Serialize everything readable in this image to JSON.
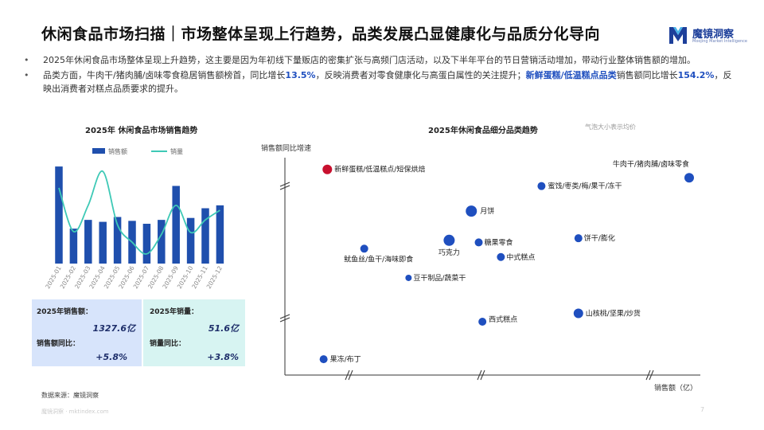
{
  "title": "休闲食品市场扫描｜市场整体呈现上行趋势，品类发展凸显健康化与品质分化导向",
  "logo": {
    "cn": "魔镜洞察",
    "en": "Moojing Market Intelligence"
  },
  "bullets": [
    {
      "text": "2025年休闲食品市场整体呈现上升趋势，这主要是因为年初线下量贩店的密集扩张与高频门店活动，以及下半年平台的节日营销活动增加，带动行业整体销售额的增加。"
    },
    {
      "p1": "品类方面，牛肉干/猪肉脯/卤味零食稳居销售额榜首，同比增长",
      "h1": "13.5%",
      "p2": "，反映消费者对零食健康化与高蛋白属性的关注提升；",
      "h2": "新鲜蛋糕/低温糕点品类",
      "p3": "销售额同比增长",
      "h3": "154.2%",
      "p4": "，反映出消费者对糕点品质要求的提升。"
    }
  ],
  "kpi": {
    "sales_label": "2025年销售额：",
    "sales_value": "1327.6亿",
    "sales_yoy_label": "销售额同比：",
    "sales_yoy_value": "+5.8%",
    "volume_label": "2025年销量：",
    "volume_value": "51.6亿",
    "volume_yoy_label": "销量同比：",
    "volume_yoy_value": "+3.8%"
  },
  "source": "数据来源：魔镜洞察",
  "footer": "魔镜洞察 · mktindex.com",
  "page_number": "7",
  "bubble_note": "气泡大小表示均价",
  "colors": {
    "bar": "#1f4fad",
    "line": "#3ec9b6",
    "bubble": "#1f4fbf",
    "highlight": "#c8102e",
    "kpi_left": "#d7e4fb",
    "kpi_right": "#d7f4f2"
  },
  "chart_data": [
    {
      "type": "bar",
      "title": "2025年 休闲食品市场销售趋势",
      "categories": [
        "2025-01",
        "2025-02",
        "2025-03",
        "2025-04",
        "2025-05",
        "2025-06",
        "2025-07",
        "2025-08",
        "2025-09",
        "2025-10",
        "2025-11",
        "2025-12"
      ],
      "series": [
        {
          "name": "销售额",
          "type": "bar",
          "values": [
            100,
            36,
            45,
            43,
            48,
            44,
            41,
            45,
            80,
            47,
            57,
            60
          ]
        },
        {
          "name": "销量",
          "type": "line",
          "values": [
            78,
            33,
            60,
            95,
            40,
            22,
            10,
            30,
            60,
            32,
            45,
            55
          ]
        }
      ],
      "ylim": [
        0,
        105
      ],
      "legend": "top",
      "grid": false
    },
    {
      "type": "scatter",
      "title": "2025年休闲食品细分品类趋势",
      "xlabel": "销售额（亿）",
      "ylabel": "销售额同比增速",
      "axis_breaks": true,
      "points": [
        {
          "label": "新鲜蛋糕/低温糕点/短保烘焙",
          "x": 2,
          "y": 94,
          "size": 6,
          "highlight": true
        },
        {
          "label": "牛肉干/猪肉脯/卤味零食",
          "x": 100,
          "y": 90,
          "size": 6
        },
        {
          "label": "蜜饯/枣类/梅/果干/冻干",
          "x": 60,
          "y": 86,
          "size": 5
        },
        {
          "label": "月饼",
          "x": 41,
          "y": 74,
          "size": 7
        },
        {
          "label": "巧克力",
          "x": 35,
          "y": 60,
          "size": 7
        },
        {
          "label": "糖果零食",
          "x": 43,
          "y": 59,
          "size": 5
        },
        {
          "label": "饼干/膨化",
          "x": 70,
          "y": 61,
          "size": 5
        },
        {
          "label": "中式糕点",
          "x": 49,
          "y": 52,
          "size": 5
        },
        {
          "label": "鱿鱼丝/鱼干/海味即食",
          "x": 12,
          "y": 56,
          "size": 5
        },
        {
          "label": "豆干制品/蔬菜干",
          "x": 24,
          "y": 42,
          "size": 4
        },
        {
          "label": "山核桃/坚果/炒货",
          "x": 70,
          "y": 25,
          "size": 6
        },
        {
          "label": "西式糕点",
          "x": 44,
          "y": 21,
          "size": 5
        },
        {
          "label": "果冻/布丁",
          "x": 1,
          "y": 3,
          "size": 5
        }
      ]
    }
  ]
}
